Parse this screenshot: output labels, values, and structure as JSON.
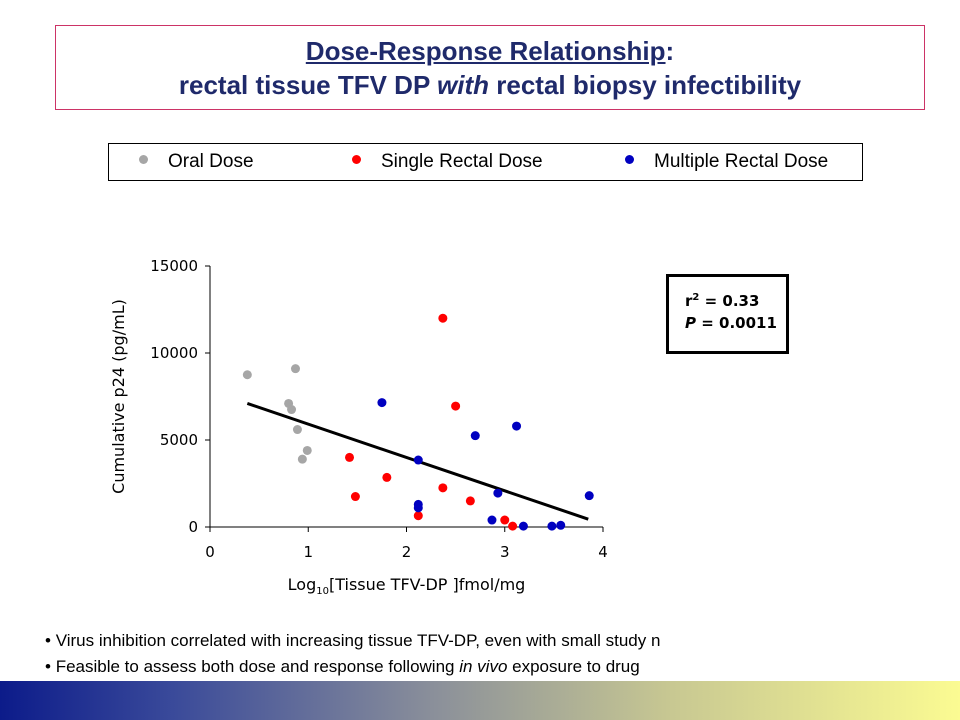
{
  "title": {
    "line1_underlined": "Dose-Response Relationship",
    "line1_suffix": ":",
    "line2_pre": "rectal tissue TFV DP ",
    "line2_italic": "with",
    "line2_post": " rectal biopsy infectibility"
  },
  "legend": {
    "items": [
      {
        "label": "Oral Dose",
        "color": "#a6a6a6"
      },
      {
        "label": "Single Rectal Dose",
        "color": "#ff0000"
      },
      {
        "label": "Multiple Rectal Dose",
        "color": "#0000c0"
      }
    ]
  },
  "stats": {
    "r_label": "r",
    "r_sup": "2",
    "r_value": " = 0.33",
    "p_label": "P",
    "p_value": " = 0.0011"
  },
  "chart_data": {
    "type": "scatter",
    "xlabel_pre": "Log",
    "xlabel_sub": "10",
    "xlabel_post": "[Tissue TFV-DP ]fmol/mg",
    "ylabel": "Cumulative p24 (pg/mL)",
    "xlim": [
      0,
      4
    ],
    "ylim": [
      0,
      15000
    ],
    "x_ticks": [
      "0",
      "1",
      "2",
      "3",
      "4"
    ],
    "y_ticks": [
      "0",
      "5000",
      "10000",
      "15000"
    ],
    "series": [
      {
        "name": "Oral Dose",
        "color": "#a6a6a6",
        "points": [
          [
            0.38,
            8750
          ],
          [
            0.8,
            7100
          ],
          [
            0.83,
            6750
          ],
          [
            0.87,
            9100
          ],
          [
            0.89,
            5600
          ],
          [
            0.94,
            3900
          ],
          [
            0.99,
            4400
          ]
        ]
      },
      {
        "name": "Single Rectal Dose",
        "color": "#ff0000",
        "points": [
          [
            1.42,
            4000
          ],
          [
            1.48,
            1750
          ],
          [
            1.8,
            2850
          ],
          [
            2.12,
            650
          ],
          [
            2.37,
            2250
          ],
          [
            2.37,
            12000
          ],
          [
            2.5,
            6950
          ],
          [
            2.65,
            1500
          ],
          [
            3.0,
            400
          ],
          [
            3.08,
            50
          ]
        ]
      },
      {
        "name": "Multiple Rectal Dose",
        "color": "#0000c0",
        "points": [
          [
            1.75,
            7150
          ],
          [
            2.12,
            3850
          ],
          [
            2.12,
            1300
          ],
          [
            2.12,
            1100
          ],
          [
            2.7,
            5250
          ],
          [
            2.87,
            400
          ],
          [
            2.93,
            1950
          ],
          [
            3.12,
            5800
          ],
          [
            3.19,
            50
          ],
          [
            3.48,
            50
          ],
          [
            3.57,
            100
          ],
          [
            3.86,
            1800
          ]
        ]
      }
    ],
    "trendline": {
      "x": [
        0.38,
        3.85
      ],
      "y": [
        7100,
        450
      ]
    }
  },
  "bullets": [
    {
      "pre": "Virus inhibition correlated with increasing tissue TFV-DP, even with small study n",
      "italic": "",
      "post": ""
    },
    {
      "pre": "Feasible to assess both dose and response following ",
      "italic": "in vivo",
      "post": " exposure to drug"
    }
  ]
}
